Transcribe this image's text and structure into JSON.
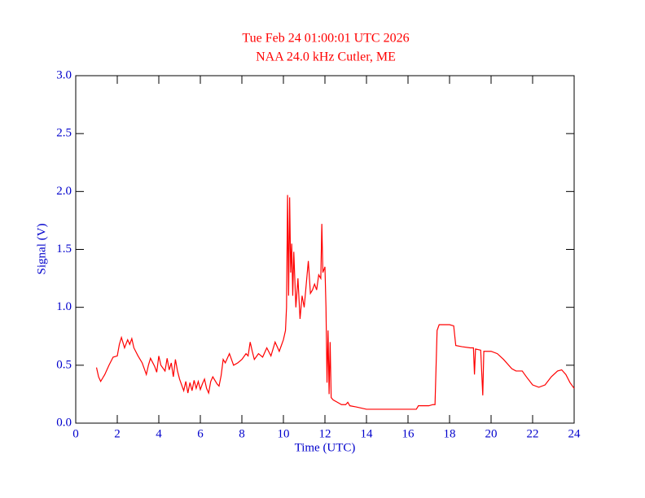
{
  "chart_data": {
    "type": "line",
    "title": "Tue Feb 24 01:00:01 UTC 2026",
    "subtitle": "NAA 24.0 kHz Cutler, ME",
    "title_color": "#ff0000",
    "axis_color": "#0000cc",
    "x_label": "Time (UTC)",
    "y_label": "Signal (V)",
    "xlim": [
      0,
      24
    ],
    "xticks": [
      0,
      2,
      4,
      6,
      8,
      10,
      12,
      14,
      16,
      18,
      20,
      22,
      24
    ],
    "ylim": [
      0,
      3
    ],
    "yticks": [
      {
        "value": 0,
        "label": "0.0"
      },
      {
        "value": 0.5,
        "label": "0.5"
      },
      {
        "value": 1,
        "label": "1.0"
      },
      {
        "value": 1.5,
        "label": "1.5"
      },
      {
        "value": 2,
        "label": "2.0"
      },
      {
        "value": 2.5,
        "label": "2.5"
      },
      {
        "value": 3,
        "label": "3.0"
      }
    ],
    "x": [
      1.0,
      1.1,
      1.2,
      1.4,
      1.6,
      1.8,
      2.0,
      2.1,
      2.2,
      2.35,
      2.5,
      2.6,
      2.7,
      2.8,
      3.0,
      3.2,
      3.3,
      3.4,
      3.5,
      3.6,
      3.8,
      3.9,
      4.0,
      4.1,
      4.3,
      4.4,
      4.5,
      4.6,
      4.7,
      4.8,
      4.9,
      5.0,
      5.1,
      5.2,
      5.3,
      5.4,
      5.5,
      5.6,
      5.7,
      5.8,
      5.9,
      6.0,
      6.1,
      6.2,
      6.3,
      6.4,
      6.5,
      6.6,
      6.8,
      6.9,
      7.0,
      7.1,
      7.2,
      7.4,
      7.5,
      7.6,
      7.8,
      8.0,
      8.2,
      8.3,
      8.4,
      8.5,
      8.6,
      8.8,
      9.0,
      9.2,
      9.4,
      9.6,
      9.8,
      9.9,
      10.0,
      10.1,
      10.15,
      10.2,
      10.25,
      10.3,
      10.35,
      10.4,
      10.45,
      10.5,
      10.6,
      10.7,
      10.8,
      10.9,
      11.0,
      11.1,
      11.2,
      11.3,
      11.4,
      11.5,
      11.6,
      11.7,
      11.8,
      11.85,
      11.9,
      12.0,
      12.05,
      12.1,
      12.15,
      12.2,
      12.25,
      12.3,
      12.4,
      12.6,
      12.8,
      13.0,
      13.1,
      13.2,
      13.5,
      14.0,
      14.5,
      15.0,
      15.5,
      16.0,
      16.4,
      16.5,
      17.0,
      17.2,
      17.3,
      17.4,
      17.5,
      18.0,
      18.2,
      18.3,
      18.6,
      19.0,
      19.15,
      19.2,
      19.25,
      19.5,
      19.6,
      19.65,
      20.0,
      20.3,
      20.6,
      21.0,
      21.2,
      21.5,
      21.7,
      22.0,
      22.3,
      22.6,
      22.9,
      23.2,
      23.4,
      23.6,
      23.8,
      24.0
    ],
    "series": [
      {
        "name": "Signal",
        "color": "#ff0000",
        "values": [
          0.48,
          0.4,
          0.36,
          0.42,
          0.5,
          0.57,
          0.58,
          0.68,
          0.74,
          0.65,
          0.72,
          0.68,
          0.73,
          0.65,
          0.58,
          0.52,
          0.47,
          0.42,
          0.5,
          0.56,
          0.49,
          0.44,
          0.58,
          0.5,
          0.45,
          0.56,
          0.46,
          0.52,
          0.4,
          0.55,
          0.45,
          0.38,
          0.33,
          0.28,
          0.36,
          0.26,
          0.35,
          0.28,
          0.37,
          0.3,
          0.36,
          0.29,
          0.34,
          0.38,
          0.3,
          0.26,
          0.36,
          0.4,
          0.34,
          0.32,
          0.41,
          0.55,
          0.52,
          0.6,
          0.55,
          0.5,
          0.52,
          0.55,
          0.6,
          0.58,
          0.7,
          0.62,
          0.55,
          0.6,
          0.57,
          0.65,
          0.58,
          0.7,
          0.62,
          0.67,
          0.72,
          0.8,
          1.0,
          1.97,
          1.1,
          1.95,
          1.3,
          1.55,
          1.1,
          1.48,
          1.0,
          1.25,
          0.9,
          1.1,
          1.0,
          1.2,
          1.4,
          1.12,
          1.15,
          1.2,
          1.15,
          1.28,
          1.25,
          1.72,
          1.3,
          1.35,
          1.0,
          0.35,
          0.8,
          0.25,
          0.7,
          0.22,
          0.2,
          0.18,
          0.16,
          0.16,
          0.18,
          0.15,
          0.14,
          0.12,
          0.12,
          0.12,
          0.12,
          0.12,
          0.12,
          0.15,
          0.15,
          0.16,
          0.16,
          0.8,
          0.85,
          0.85,
          0.84,
          0.67,
          0.66,
          0.65,
          0.65,
          0.42,
          0.64,
          0.63,
          0.24,
          0.62,
          0.62,
          0.6,
          0.55,
          0.47,
          0.45,
          0.45,
          0.4,
          0.33,
          0.31,
          0.33,
          0.4,
          0.45,
          0.46,
          0.42,
          0.35,
          0.3
        ]
      }
    ]
  }
}
